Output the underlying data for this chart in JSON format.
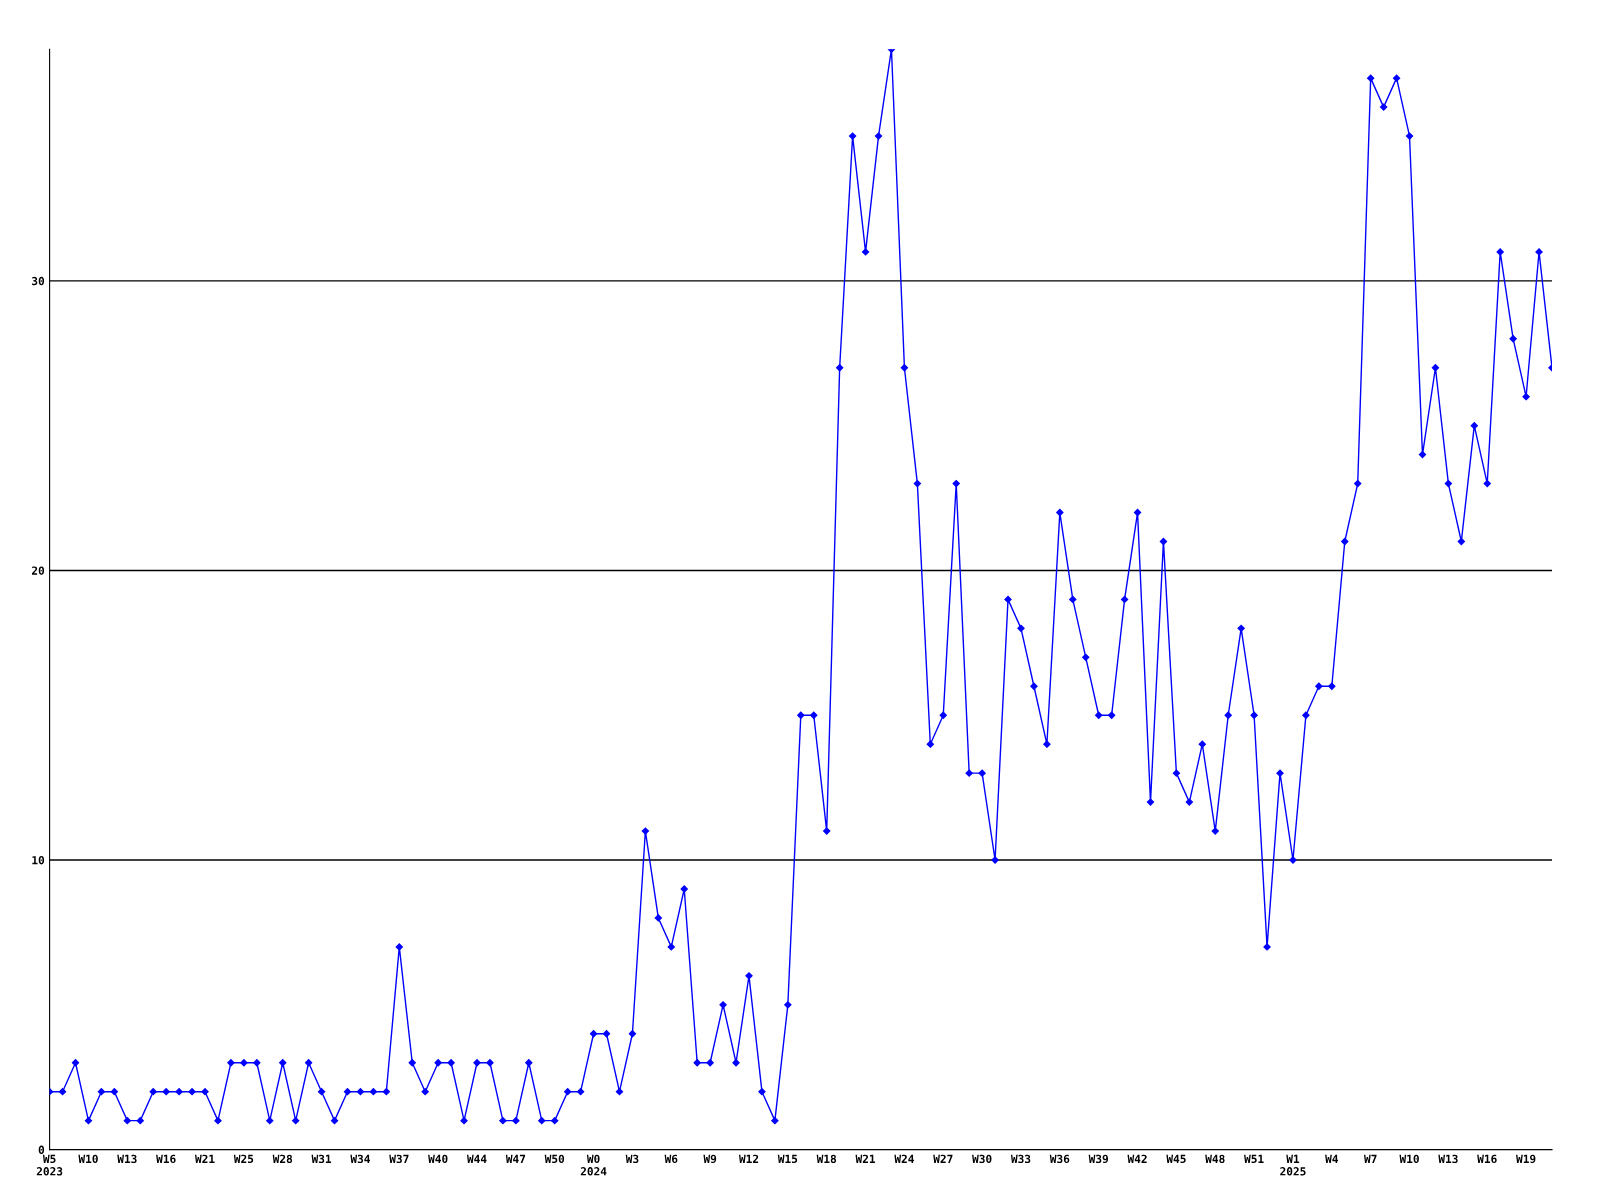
{
  "chart_data": {
    "type": "line",
    "categories": [
      "W5\n2023",
      null,
      null,
      "W10",
      null,
      null,
      "W13",
      null,
      null,
      "W16",
      null,
      null,
      "W21",
      null,
      null,
      "W25",
      null,
      null,
      "W28",
      null,
      null,
      "W31",
      null,
      null,
      "W34",
      null,
      null,
      "W37",
      null,
      null,
      "W40",
      null,
      null,
      "W44",
      null,
      null,
      "W47",
      null,
      null,
      "W50",
      null,
      null,
      "W0\n2024",
      null,
      null,
      "W3",
      null,
      null,
      "W6",
      null,
      null,
      "W9",
      null,
      null,
      "W12",
      null,
      null,
      "W15",
      null,
      null,
      "W18",
      null,
      null,
      "W21",
      null,
      null,
      "W24",
      null,
      null,
      "W27",
      null,
      null,
      "W30",
      null,
      null,
      "W33",
      null,
      null,
      "W36",
      null,
      null,
      "W39",
      null,
      null,
      "W42",
      null,
      null,
      "W45",
      null,
      null,
      "W48",
      null,
      null,
      "W51",
      null,
      null,
      "W1\n2025",
      null,
      null,
      "W4",
      null,
      null,
      "W7",
      null,
      null,
      "W10",
      null,
      null,
      "W13",
      null,
      null,
      "W16",
      null,
      null,
      "W19",
      null,
      null
    ],
    "series": [
      {
        "color": "#0000ff",
        "values": [
          2,
          2,
          3,
          1,
          2,
          2,
          1,
          1,
          2,
          2,
          2,
          2,
          2,
          1,
          3,
          3,
          3,
          1,
          3,
          1,
          3,
          2,
          1,
          2,
          2,
          2,
          2,
          7,
          3,
          2,
          3,
          3,
          1,
          3,
          3,
          1,
          1,
          3,
          1,
          1,
          2,
          2,
          4,
          4,
          2,
          4,
          11,
          8,
          7,
          9,
          3,
          3,
          5,
          3,
          6,
          2,
          1,
          5,
          15,
          15,
          11,
          27,
          35,
          31,
          35,
          38,
          27,
          23,
          14,
          15,
          23,
          13,
          13,
          10,
          19,
          18,
          16,
          14,
          22,
          19,
          17,
          15,
          15,
          19,
          22,
          12,
          21,
          13,
          12,
          14,
          11,
          15,
          18,
          15,
          7,
          13,
          10,
          15,
          16,
          16,
          21,
          23,
          37,
          36,
          37,
          35,
          24,
          27,
          23,
          21,
          25,
          23,
          31,
          28,
          26,
          31,
          27
        ]
      }
    ],
    "ylim": [
      0,
      38
    ],
    "yticks": [
      0,
      10,
      20,
      30
    ],
    "grid": "y",
    "marker": "diamond",
    "line_style": "solid",
    "legend": false
  }
}
